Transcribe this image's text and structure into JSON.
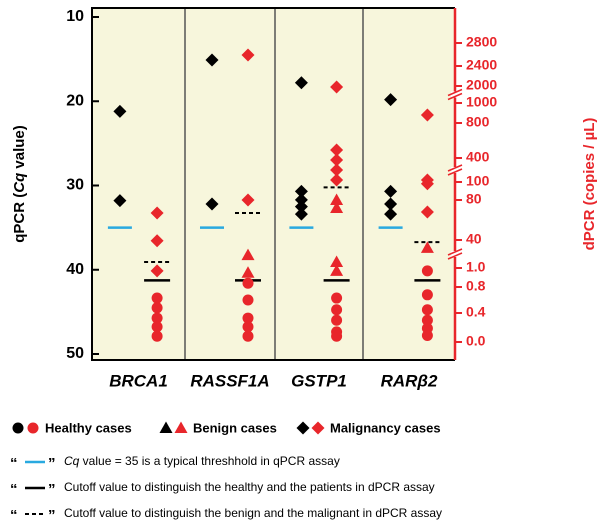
{
  "chart_data": {
    "type": "dot",
    "categories": [
      "BRCA1",
      "RASSF1A",
      "GSTP1",
      "RARβ2"
    ],
    "ylabel": {
      "before": "qPCR (",
      "italic": "Cq",
      "after": " value)"
    },
    "y2label": "dPCR (copies / µL)",
    "ylim": [
      10,
      50
    ],
    "yticks": [
      10,
      20,
      30,
      40,
      50
    ],
    "yinverted": true,
    "y2lim": [
      0,
      2800
    ],
    "y2ticks": [
      2800,
      2400,
      2000,
      1000,
      800,
      400,
      100,
      80,
      40,
      {
        "value": 1,
        "label": "1.0"
      },
      {
        "value": 0.8,
        "label": "0.8"
      },
      {
        "value": 0.4,
        "label": "0.4"
      },
      {
        "value": 0,
        "label": "0.0"
      }
    ],
    "qpcr_color": "#000000",
    "dpcr_color": "#e8262b",
    "threshold_color": "#29a9e0",
    "panel_color": "#f7f6dc",
    "threshold": 35,
    "panels": [
      {
        "qpcr": {
          "malignant": [
            21.2,
            31.8
          ]
        },
        "dpcr": {
          "malignant": [
            67,
            39,
            0.97
          ],
          "healthy": [
            0.63,
            0.48,
            0.33,
            0.21,
            0.08
          ]
        },
        "cutoff": 0.87,
        "benign_cutoff": 9.4
      },
      {
        "qpcr": {
          "malignant": [
            15.1,
            32.2
          ]
        },
        "dpcr": {
          "malignant": [
            2591,
            80
          ],
          "benign": [
            19,
            0.95
          ],
          "healthy": [
            0.84,
            0.6,
            0.33,
            0.21,
            0.08
          ]
        },
        "cutoff": 0.87,
        "benign_cutoff": 67
      },
      {
        "qpcr": {
          "malignant": [
            17.8,
            30.7,
            31.7,
            32.5,
            33.4
          ]
        },
        "dpcr": {
          "malignant": [
            1941,
            491,
            375,
            250,
            125
          ],
          "benign": [
            80,
            72,
            9.4,
            0.97
          ],
          "healthy": [
            0.63,
            0.45,
            0.3,
            0.14,
            0.08
          ]
        },
        "cutoff": 0.87,
        "benign_cutoff": 94
      },
      {
        "qpcr": {
          "malignant": [
            19.8,
            30.7,
            32.2,
            33.4
          ]
        },
        "dpcr": {
          "malignant": [
            880,
            125,
            98,
            68
          ],
          "benign": [
            29
          ],
          "healthy": [
            0.97,
            0.68,
            0.45,
            0.3,
            0.19,
            0.09
          ]
        },
        "cutoff": 0.87,
        "benign_cutoff": 37
      }
    ],
    "legend": [
      {
        "group": "healthy",
        "label": "Healthy cases"
      },
      {
        "group": "benign",
        "label": "Benign cases"
      },
      {
        "group": "malignant",
        "label": "Malignancy cases"
      }
    ],
    "line_notes": [
      {
        "open": "“",
        "close": "”",
        "style": "threshold",
        "italic": "Cq",
        "text": " value = 35 is a typical threshhold in qPCR assay"
      },
      {
        "open": "“",
        "close": "”",
        "style": "cutoff",
        "text": "Cutoff value to distinguish the healthy and the patients in dPCR assay"
      },
      {
        "open": "“",
        "close": "”",
        "style": "benign_cutoff",
        "text": "Cutoff value to distinguish the benign and the malignant in dPCR assay"
      }
    ]
  }
}
